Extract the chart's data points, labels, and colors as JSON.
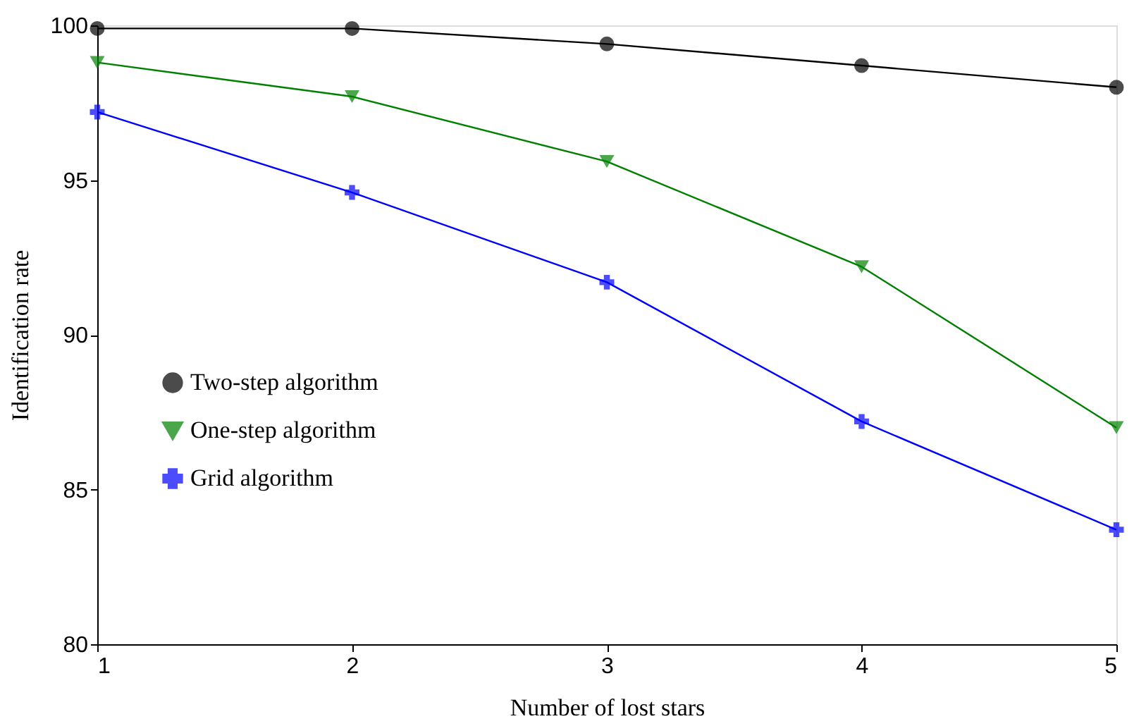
{
  "chart_data": {
    "type": "line",
    "xlabel": "Number of lost stars",
    "ylabel": "Identification rate",
    "x": [
      1,
      2,
      3,
      4,
      5
    ],
    "xlim": [
      1,
      5
    ],
    "xticks": [
      1,
      2,
      3,
      4,
      5
    ],
    "ylim": [
      80,
      100
    ],
    "yticks": [
      80,
      85,
      90,
      95,
      100
    ],
    "grid": false,
    "legend": "left",
    "series": [
      {
        "name": "Two-step algorithm",
        "color": "#000000",
        "marker": "circle",
        "values": [
          99.9,
          99.9,
          99.4,
          98.7,
          98.0
        ]
      },
      {
        "name": "One-step algorithm",
        "color": "#008000",
        "marker": "triangle",
        "values": [
          98.8,
          97.7,
          95.6,
          92.2,
          87.0
        ]
      },
      {
        "name": "Grid algorithm",
        "color": "#0000ff",
        "marker": "cross",
        "values": [
          97.2,
          94.6,
          91.7,
          87.2,
          83.7
        ]
      }
    ]
  }
}
